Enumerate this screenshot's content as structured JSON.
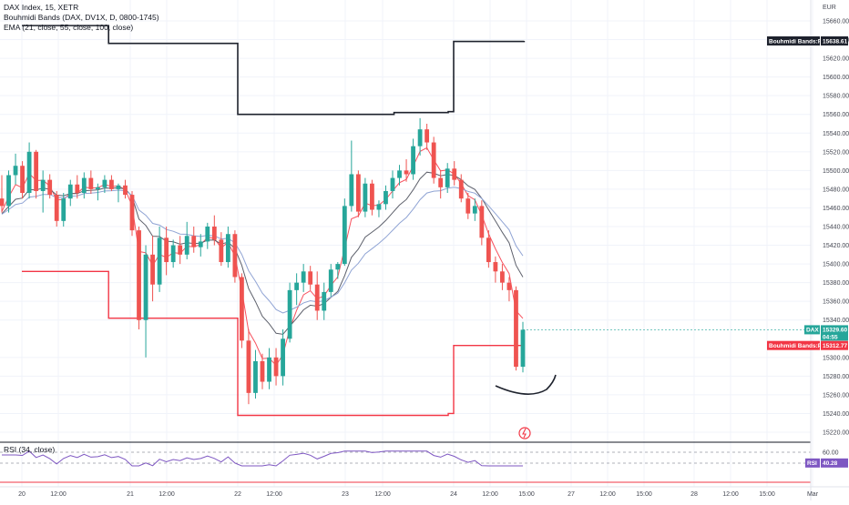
{
  "chart_data": {
    "type": "candlestick",
    "title": "DAX Index, 15, XETR",
    "currency": "EUR",
    "indicators": [
      "Bouhmidi Bands (DAX, DV1X, D, 0800-1745)",
      "EMA (21, close, 55, close, 100, close)"
    ],
    "y_ticks": [
      "15660.00",
      "15640.00",
      "15620.00",
      "15600.00",
      "15580.00",
      "15560.00",
      "15540.00",
      "15520.00",
      "15500.00",
      "15480.00",
      "15460.00",
      "15440.00",
      "15420.00",
      "15400.00",
      "15380.00",
      "15360.00",
      "15340.00",
      "15300.00",
      "15280.00",
      "15260.00",
      "15240.00",
      "15220.00"
    ],
    "ylim": [
      15210,
      15670
    ],
    "x_ticks": [
      "20",
      "12:00",
      "21",
      "12:00",
      "22",
      "12:00",
      "23",
      "12:00",
      "24",
      "12:00",
      "15:00",
      "27",
      "12:00",
      "15:00",
      "28",
      "12:00",
      "15:00",
      "Mar"
    ],
    "x_ticks_info": "Feb 20–28 and Mar; 15-minute bars",
    "upper_band": {
      "name": "Bouhmidi Bands:Plot",
      "steps": [
        [
          0,
          15655
        ],
        [
          0.8,
          15636
        ],
        [
          2.0,
          15560
        ],
        [
          3.45,
          15562
        ],
        [
          3.95,
          15563
        ],
        [
          4.0,
          15638
        ],
        [
          4.6,
          15638.61
        ]
      ],
      "label": "15638.61"
    },
    "lower_band": {
      "name": "Bouhmidi Bands:Plot",
      "steps": [
        [
          0,
          15392
        ],
        [
          0.8,
          15342
        ],
        [
          2.0,
          15340
        ],
        [
          2.0,
          15238
        ],
        [
          3.0,
          15238
        ],
        [
          3.95,
          15240
        ],
        [
          4.0,
          15312.77
        ],
        [
          4.6,
          15312.77
        ]
      ],
      "label": "15312.77"
    },
    "last_price": {
      "name": "DAX",
      "value": "15329.60",
      "countdown": "04:55"
    },
    "candles_ohlc": [
      [
        15470,
        15495,
        15455,
        15462
      ],
      [
        15462,
        15500,
        15455,
        15495
      ],
      [
        15495,
        15518,
        15485,
        15505
      ],
      [
        15505,
        15510,
        15470,
        15476
      ],
      [
        15476,
        15530,
        15470,
        15520
      ],
      [
        15520,
        15522,
        15470,
        15478
      ],
      [
        15478,
        15500,
        15455,
        15490
      ],
      [
        15490,
        15496,
        15470,
        15474
      ],
      [
        15474,
        15478,
        15440,
        15446
      ],
      [
        15446,
        15476,
        15440,
        15470
      ],
      [
        15470,
        15490,
        15462,
        15485
      ],
      [
        15485,
        15495,
        15470,
        15476
      ],
      [
        15476,
        15498,
        15470,
        15492
      ],
      [
        15492,
        15500,
        15475,
        15480
      ],
      [
        15480,
        15486,
        15468,
        15482
      ],
      [
        15482,
        15495,
        15476,
        15490
      ],
      [
        15490,
        15495,
        15478,
        15480
      ],
      [
        15480,
        15486,
        15466,
        15484
      ],
      [
        15484,
        15490,
        15470,
        15474
      ],
      [
        15474,
        15478,
        15430,
        15436
      ],
      [
        15436,
        15440,
        15330,
        15340
      ],
      [
        15340,
        15420,
        15300,
        15410
      ],
      [
        15410,
        15430,
        15360,
        15378
      ],
      [
        15378,
        15440,
        15370,
        15428
      ],
      [
        15428,
        15440,
        15388,
        15402
      ],
      [
        15402,
        15426,
        15396,
        15420
      ],
      [
        15420,
        15430,
        15400,
        15410
      ],
      [
        15410,
        15445,
        15405,
        15430
      ],
      [
        15430,
        15440,
        15412,
        15418
      ],
      [
        15418,
        15432,
        15408,
        15424
      ],
      [
        15424,
        15444,
        15416,
        15440
      ],
      [
        15440,
        15452,
        15420,
        15426
      ],
      [
        15426,
        15434,
        15398,
        15402
      ],
      [
        15402,
        15440,
        15396,
        15432
      ],
      [
        15432,
        15436,
        15380,
        15386
      ],
      [
        15386,
        15390,
        15310,
        15318
      ],
      [
        15318,
        15330,
        15250,
        15262
      ],
      [
        15262,
        15308,
        15256,
        15296
      ],
      [
        15296,
        15304,
        15266,
        15274
      ],
      [
        15274,
        15310,
        15266,
        15300
      ],
      [
        15300,
        15310,
        15270,
        15280
      ],
      [
        15280,
        15330,
        15270,
        15320
      ],
      [
        15320,
        15380,
        15316,
        15372
      ],
      [
        15372,
        15390,
        15356,
        15380
      ],
      [
        15380,
        15400,
        15370,
        15392
      ],
      [
        15392,
        15398,
        15372,
        15378
      ],
      [
        15378,
        15392,
        15340,
        15350
      ],
      [
        15350,
        15380,
        15340,
        15370
      ],
      [
        15370,
        15400,
        15365,
        15394
      ],
      [
        15394,
        15402,
        15384,
        15400
      ],
      [
        15400,
        15470,
        15398,
        15462
      ],
      [
        15462,
        15532,
        15456,
        15496
      ],
      [
        15496,
        15500,
        15450,
        15456
      ],
      [
        15456,
        15492,
        15450,
        15486
      ],
      [
        15486,
        15490,
        15452,
        15458
      ],
      [
        15458,
        15468,
        15450,
        15464
      ],
      [
        15464,
        15484,
        15458,
        15478
      ],
      [
        15478,
        15500,
        15470,
        15492
      ],
      [
        15492,
        15506,
        15484,
        15500
      ],
      [
        15500,
        15512,
        15488,
        15496
      ],
      [
        15496,
        15534,
        15490,
        15526
      ],
      [
        15526,
        15556,
        15516,
        15544
      ],
      [
        15544,
        15550,
        15522,
        15530
      ],
      [
        15530,
        15536,
        15486,
        15492
      ],
      [
        15492,
        15500,
        15470,
        15482
      ],
      [
        15482,
        15508,
        15476,
        15502
      ],
      [
        15502,
        15510,
        15484,
        15490
      ],
      [
        15490,
        15496,
        15466,
        15470
      ],
      [
        15470,
        15476,
        15448,
        15454
      ],
      [
        15454,
        15470,
        15446,
        15462
      ],
      [
        15462,
        15468,
        15420,
        15428
      ],
      [
        15428,
        15436,
        15396,
        15402
      ],
      [
        15402,
        15408,
        15380,
        15392
      ],
      [
        15392,
        15400,
        15372,
        15380
      ],
      [
        15380,
        15386,
        15360,
        15372
      ],
      [
        15372,
        15376,
        15286,
        15290
      ],
      [
        15290,
        15338,
        15284,
        15329.6
      ]
    ],
    "rsi": {
      "name": "RSI (34, close)",
      "value": "40.28",
      "levels": [
        "60.00",
        "40.00"
      ]
    }
  },
  "colors": {
    "bull": "#26a69a",
    "bear": "#ef5350",
    "upper_band": "#1e222d",
    "lower_band": "#f23645",
    "ema21": "#f7525f",
    "ema55": "#5d606b",
    "ema100": "#90a4d4",
    "rsi_line": "#7e57c2"
  }
}
